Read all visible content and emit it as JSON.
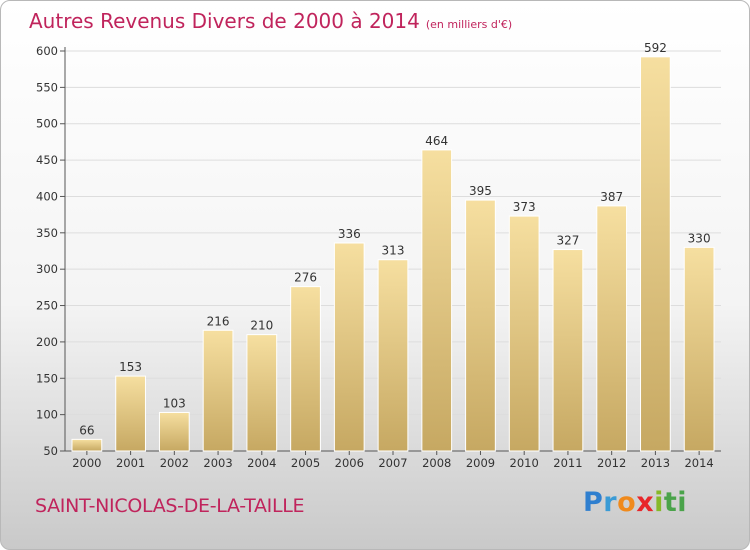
{
  "header": {
    "title": "Autres Revenus Divers de 2000 à 2014",
    "unit": "(en milliers d'€)"
  },
  "footer": {
    "city": "SAINT-NICOLAS-DE-LA-TAILLE",
    "logo_letters": [
      "P",
      "r",
      "o",
      "x",
      "i",
      "ti"
    ]
  },
  "colors": {
    "title": "#c0245c",
    "bar_light": "#f6dfa0",
    "bar_dark": "#c6a862"
  },
  "chart_data": {
    "type": "bar",
    "categories": [
      "2000",
      "2001",
      "2002",
      "2003",
      "2004",
      "2005",
      "2006",
      "2007",
      "2008",
      "2009",
      "2010",
      "2011",
      "2012",
      "2013",
      "2014"
    ],
    "values": [
      66,
      153,
      103,
      216,
      210,
      276,
      336,
      313,
      464,
      395,
      373,
      327,
      387,
      592,
      330
    ],
    "title": "Autres Revenus Divers de 2000 à 2014",
    "ylim": [
      50,
      600
    ],
    "yticks": [
      50,
      100,
      150,
      200,
      250,
      300,
      350,
      400,
      450,
      500,
      550,
      600
    ],
    "grid": true,
    "legend": "none"
  }
}
